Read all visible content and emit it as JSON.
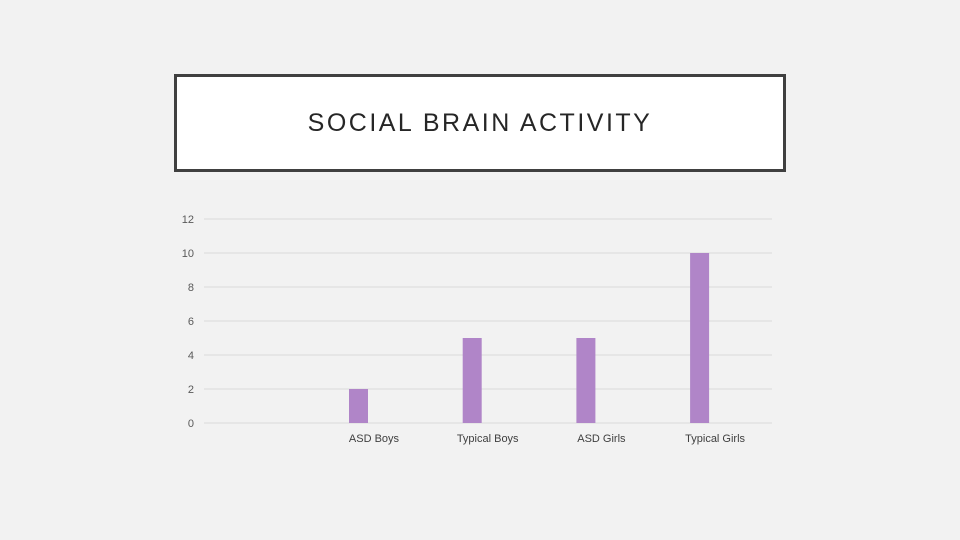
{
  "title": "SOCIAL BRAIN ACTIVITY",
  "chart_data": {
    "type": "bar",
    "title": "",
    "xlabel": "",
    "ylabel": "",
    "categories": [
      "ASD Boys",
      "Typical Boys",
      "ASD Girls",
      "Typical Girls"
    ],
    "values": [
      2,
      5,
      5,
      10
    ],
    "ylim": [
      0,
      12
    ],
    "yticks": [
      0,
      2,
      4,
      6,
      8,
      10,
      12
    ],
    "grid": true,
    "legend": "none",
    "bar_color": "#b085c8",
    "grid_color": "#d9d9d9"
  }
}
